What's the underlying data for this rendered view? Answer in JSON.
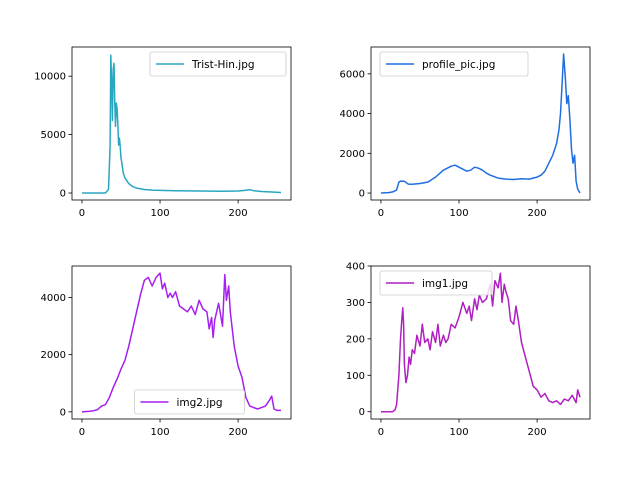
{
  "chart_data": [
    {
      "type": "line",
      "title": "",
      "xlabel": "",
      "ylabel": "",
      "xlim": [
        -12.75,
        267.75
      ],
      "ylim": [
        -600,
        12500
      ],
      "xticks": [
        0,
        100,
        200
      ],
      "yticks": [
        0,
        5000,
        10000
      ],
      "legend_position": "top-right",
      "grid": false,
      "series": [
        {
          "name": "Trist-Hin.jpg",
          "color": "#2aa7c0",
          "x": [
            0,
            30,
            34,
            36,
            37,
            38,
            39,
            40,
            41,
            42,
            43,
            44,
            45,
            46,
            47,
            48,
            49,
            50,
            51,
            52,
            53,
            55,
            58,
            60,
            65,
            70,
            80,
            90,
            100,
            120,
            150,
            180,
            200,
            210,
            215,
            220,
            230,
            240,
            255
          ],
          "y": [
            0,
            0,
            300,
            4000,
            11800,
            9500,
            6200,
            10600,
            11100,
            8000,
            5700,
            7700,
            7200,
            5800,
            4100,
            4700,
            4000,
            3000,
            2600,
            2100,
            1700,
            1300,
            1000,
            800,
            550,
            420,
            300,
            250,
            220,
            190,
            170,
            150,
            170,
            230,
            280,
            200,
            130,
            90,
            40
          ]
        }
      ]
    },
    {
      "type": "line",
      "title": "",
      "xlabel": "",
      "ylabel": "",
      "xlim": [
        -12.75,
        267.75
      ],
      "ylim": [
        -350,
        7350
      ],
      "xticks": [
        0,
        100,
        200
      ],
      "yticks": [
        0,
        2000,
        4000,
        6000
      ],
      "legend_position": "top-left",
      "grid": false,
      "series": [
        {
          "name": "profile_pic.jpg",
          "color": "#1f6fe0",
          "x": [
            0,
            10,
            15,
            20,
            23,
            25,
            30,
            35,
            40,
            50,
            60,
            70,
            80,
            90,
            95,
            100,
            105,
            110,
            115,
            120,
            125,
            130,
            135,
            140,
            150,
            160,
            170,
            180,
            190,
            200,
            205,
            210,
            215,
            220,
            225,
            228,
            230,
            232,
            234,
            236,
            238,
            240,
            242,
            244,
            246,
            248,
            250,
            252,
            255
          ],
          "y": [
            0,
            20,
            60,
            150,
            550,
            600,
            590,
            450,
            440,
            480,
            550,
            800,
            1150,
            1350,
            1400,
            1300,
            1200,
            1100,
            1150,
            1300,
            1250,
            1150,
            1000,
            900,
            750,
            700,
            680,
            720,
            700,
            800,
            900,
            1100,
            1500,
            1900,
            2500,
            3200,
            4000,
            5500,
            7000,
            5900,
            4500,
            4900,
            3700,
            2200,
            1500,
            1900,
            600,
            200,
            0
          ]
        }
      ]
    },
    {
      "type": "line",
      "title": "",
      "xlabel": "",
      "ylabel": "",
      "xlim": [
        -12.75,
        267.75
      ],
      "ylim": [
        -250,
        5100
      ],
      "xticks": [
        0,
        100,
        200
      ],
      "yticks": [
        0,
        2000,
        4000
      ],
      "legend_position": "bottom-center",
      "grid": false,
      "series": [
        {
          "name": "img2.jpg",
          "color": "#a51ff0",
          "x": [
            0,
            10,
            15,
            20,
            25,
            30,
            35,
            40,
            45,
            50,
            55,
            60,
            65,
            70,
            75,
            80,
            85,
            90,
            95,
            100,
            103,
            106,
            110,
            113,
            116,
            120,
            125,
            130,
            135,
            140,
            145,
            150,
            155,
            160,
            163,
            166,
            168,
            170,
            175,
            180,
            183,
            185,
            188,
            190,
            195,
            200,
            205,
            210,
            215,
            220,
            225,
            230,
            235,
            240,
            243,
            246,
            250,
            255
          ],
          "y": [
            0,
            20,
            40,
            80,
            200,
            250,
            500,
            850,
            1150,
            1500,
            1800,
            2300,
            2900,
            3500,
            4100,
            4600,
            4700,
            4400,
            4700,
            4850,
            4300,
            4500,
            4000,
            4150,
            4000,
            4200,
            3700,
            3600,
            3500,
            3700,
            3400,
            3900,
            3600,
            3500,
            2900,
            3300,
            2600,
            3200,
            3800,
            3000,
            4800,
            3900,
            4400,
            3500,
            2300,
            1600,
            1200,
            500,
            200,
            150,
            100,
            150,
            200,
            400,
            550,
            100,
            50,
            50
          ]
        }
      ]
    },
    {
      "type": "line",
      "title": "",
      "xlabel": "",
      "ylabel": "",
      "xlim": [
        -12.75,
        267.75
      ],
      "ylim": [
        -20,
        400
      ],
      "xticks": [
        0,
        100,
        200
      ],
      "yticks": [
        0,
        100,
        200,
        300,
        400
      ],
      "legend_position": "top-left",
      "grid": false,
      "series": [
        {
          "name": "img1.jpg",
          "color": "#b01fc0",
          "x": [
            0,
            10,
            15,
            18,
            20,
            23,
            25,
            27,
            28,
            29,
            30,
            32,
            34,
            36,
            38,
            40,
            43,
            46,
            50,
            53,
            56,
            60,
            63,
            66,
            70,
            73,
            76,
            80,
            83,
            86,
            90,
            95,
            100,
            105,
            110,
            113,
            116,
            120,
            123,
            126,
            130,
            135,
            140,
            143,
            146,
            150,
            153,
            155,
            158,
            160,
            163,
            166,
            170,
            173,
            176,
            180,
            185,
            190,
            195,
            200,
            205,
            210,
            215,
            220,
            225,
            230,
            235,
            240,
            245,
            250,
            252,
            255
          ],
          "y": [
            0,
            0,
            0,
            5,
            20,
            100,
            200,
            260,
            285,
            240,
            130,
            80,
            100,
            150,
            130,
            170,
            160,
            210,
            180,
            240,
            190,
            200,
            170,
            220,
            190,
            240,
            180,
            210,
            190,
            200,
            240,
            230,
            260,
            300,
            270,
            290,
            250,
            310,
            280,
            320,
            300,
            310,
            350,
            290,
            360,
            340,
            380,
            300,
            350,
            330,
            310,
            250,
            240,
            290,
            250,
            190,
            150,
            110,
            70,
            60,
            40,
            50,
            30,
            25,
            30,
            20,
            35,
            30,
            45,
            25,
            60,
            40
          ]
        }
      ]
    }
  ]
}
